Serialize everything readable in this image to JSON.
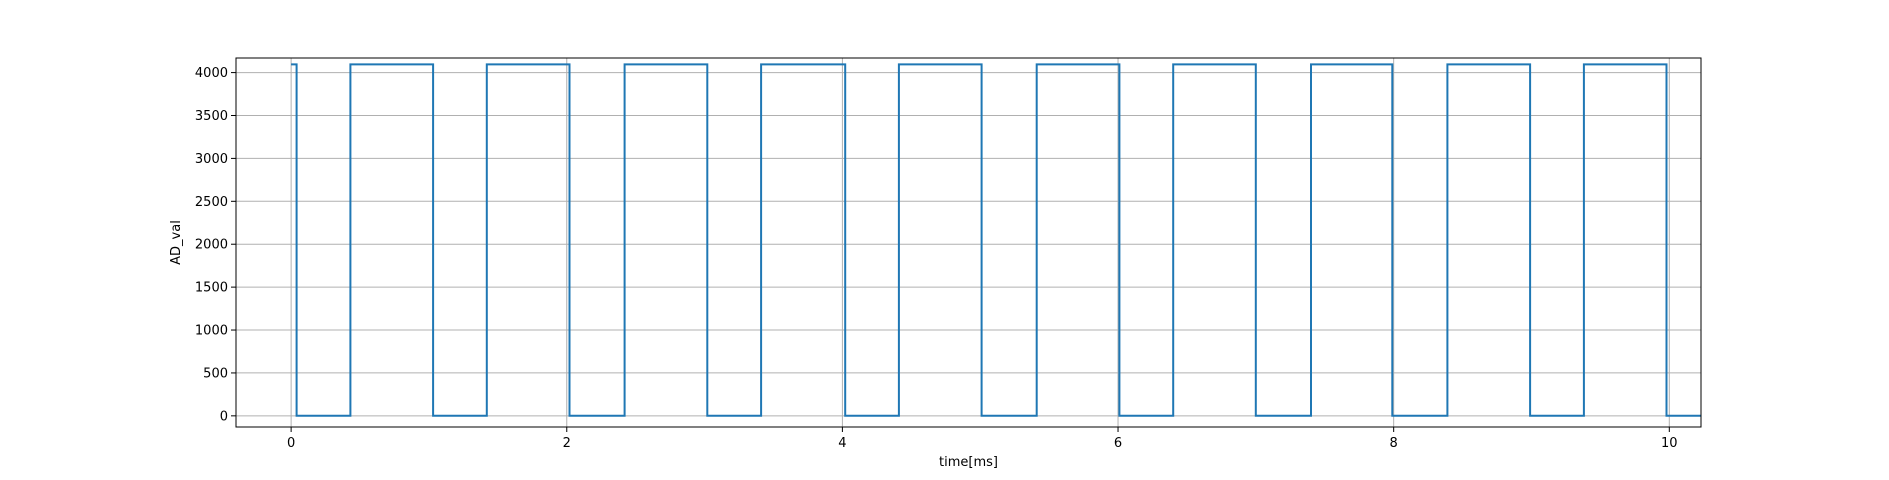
{
  "chart_data": {
    "type": "line",
    "title": "",
    "xlabel": "time[ms]",
    "ylabel": "AD_val",
    "xlim": [
      -0.4,
      10.23
    ],
    "ylim": [
      -130,
      4170
    ],
    "xticks": [
      0,
      2,
      4,
      6,
      8,
      10
    ],
    "yticks": [
      0,
      500,
      1000,
      1500,
      2000,
      2500,
      3000,
      3500,
      4000
    ],
    "grid": true,
    "series": [
      {
        "color": "#1f77b4",
        "x": [
          0.0,
          0.04,
          0.04,
          0.43,
          0.43,
          0.43,
          1.03,
          1.03,
          1.42,
          1.42,
          1.42,
          2.02,
          2.02,
          2.42,
          2.42,
          2.42,
          3.02,
          3.02,
          3.41,
          3.41,
          3.41,
          4.02,
          4.02,
          4.41,
          4.41,
          4.41,
          5.01,
          5.01,
          5.41,
          5.41,
          5.41,
          6.01,
          6.01,
          6.4,
          6.4,
          6.4,
          7.0,
          7.0,
          7.4,
          7.4,
          7.99,
          7.99,
          8.39,
          8.39,
          8.99,
          8.99,
          9.38,
          9.38,
          9.98,
          9.98,
          10.23
        ],
        "y": [
          4095,
          4095,
          0,
          0,
          720,
          4095,
          4095,
          0,
          0,
          700,
          4095,
          4095,
          0,
          0,
          450,
          4095,
          4095,
          0,
          0,
          700,
          4095,
          4095,
          0,
          0,
          700,
          4095,
          4095,
          0,
          0,
          730,
          4095,
          4095,
          0,
          0,
          720,
          4095,
          4095,
          0,
          0,
          4095,
          4095,
          0,
          0,
          4095,
          4095,
          0,
          0,
          4095,
          4095,
          0,
          0
        ]
      }
    ]
  }
}
